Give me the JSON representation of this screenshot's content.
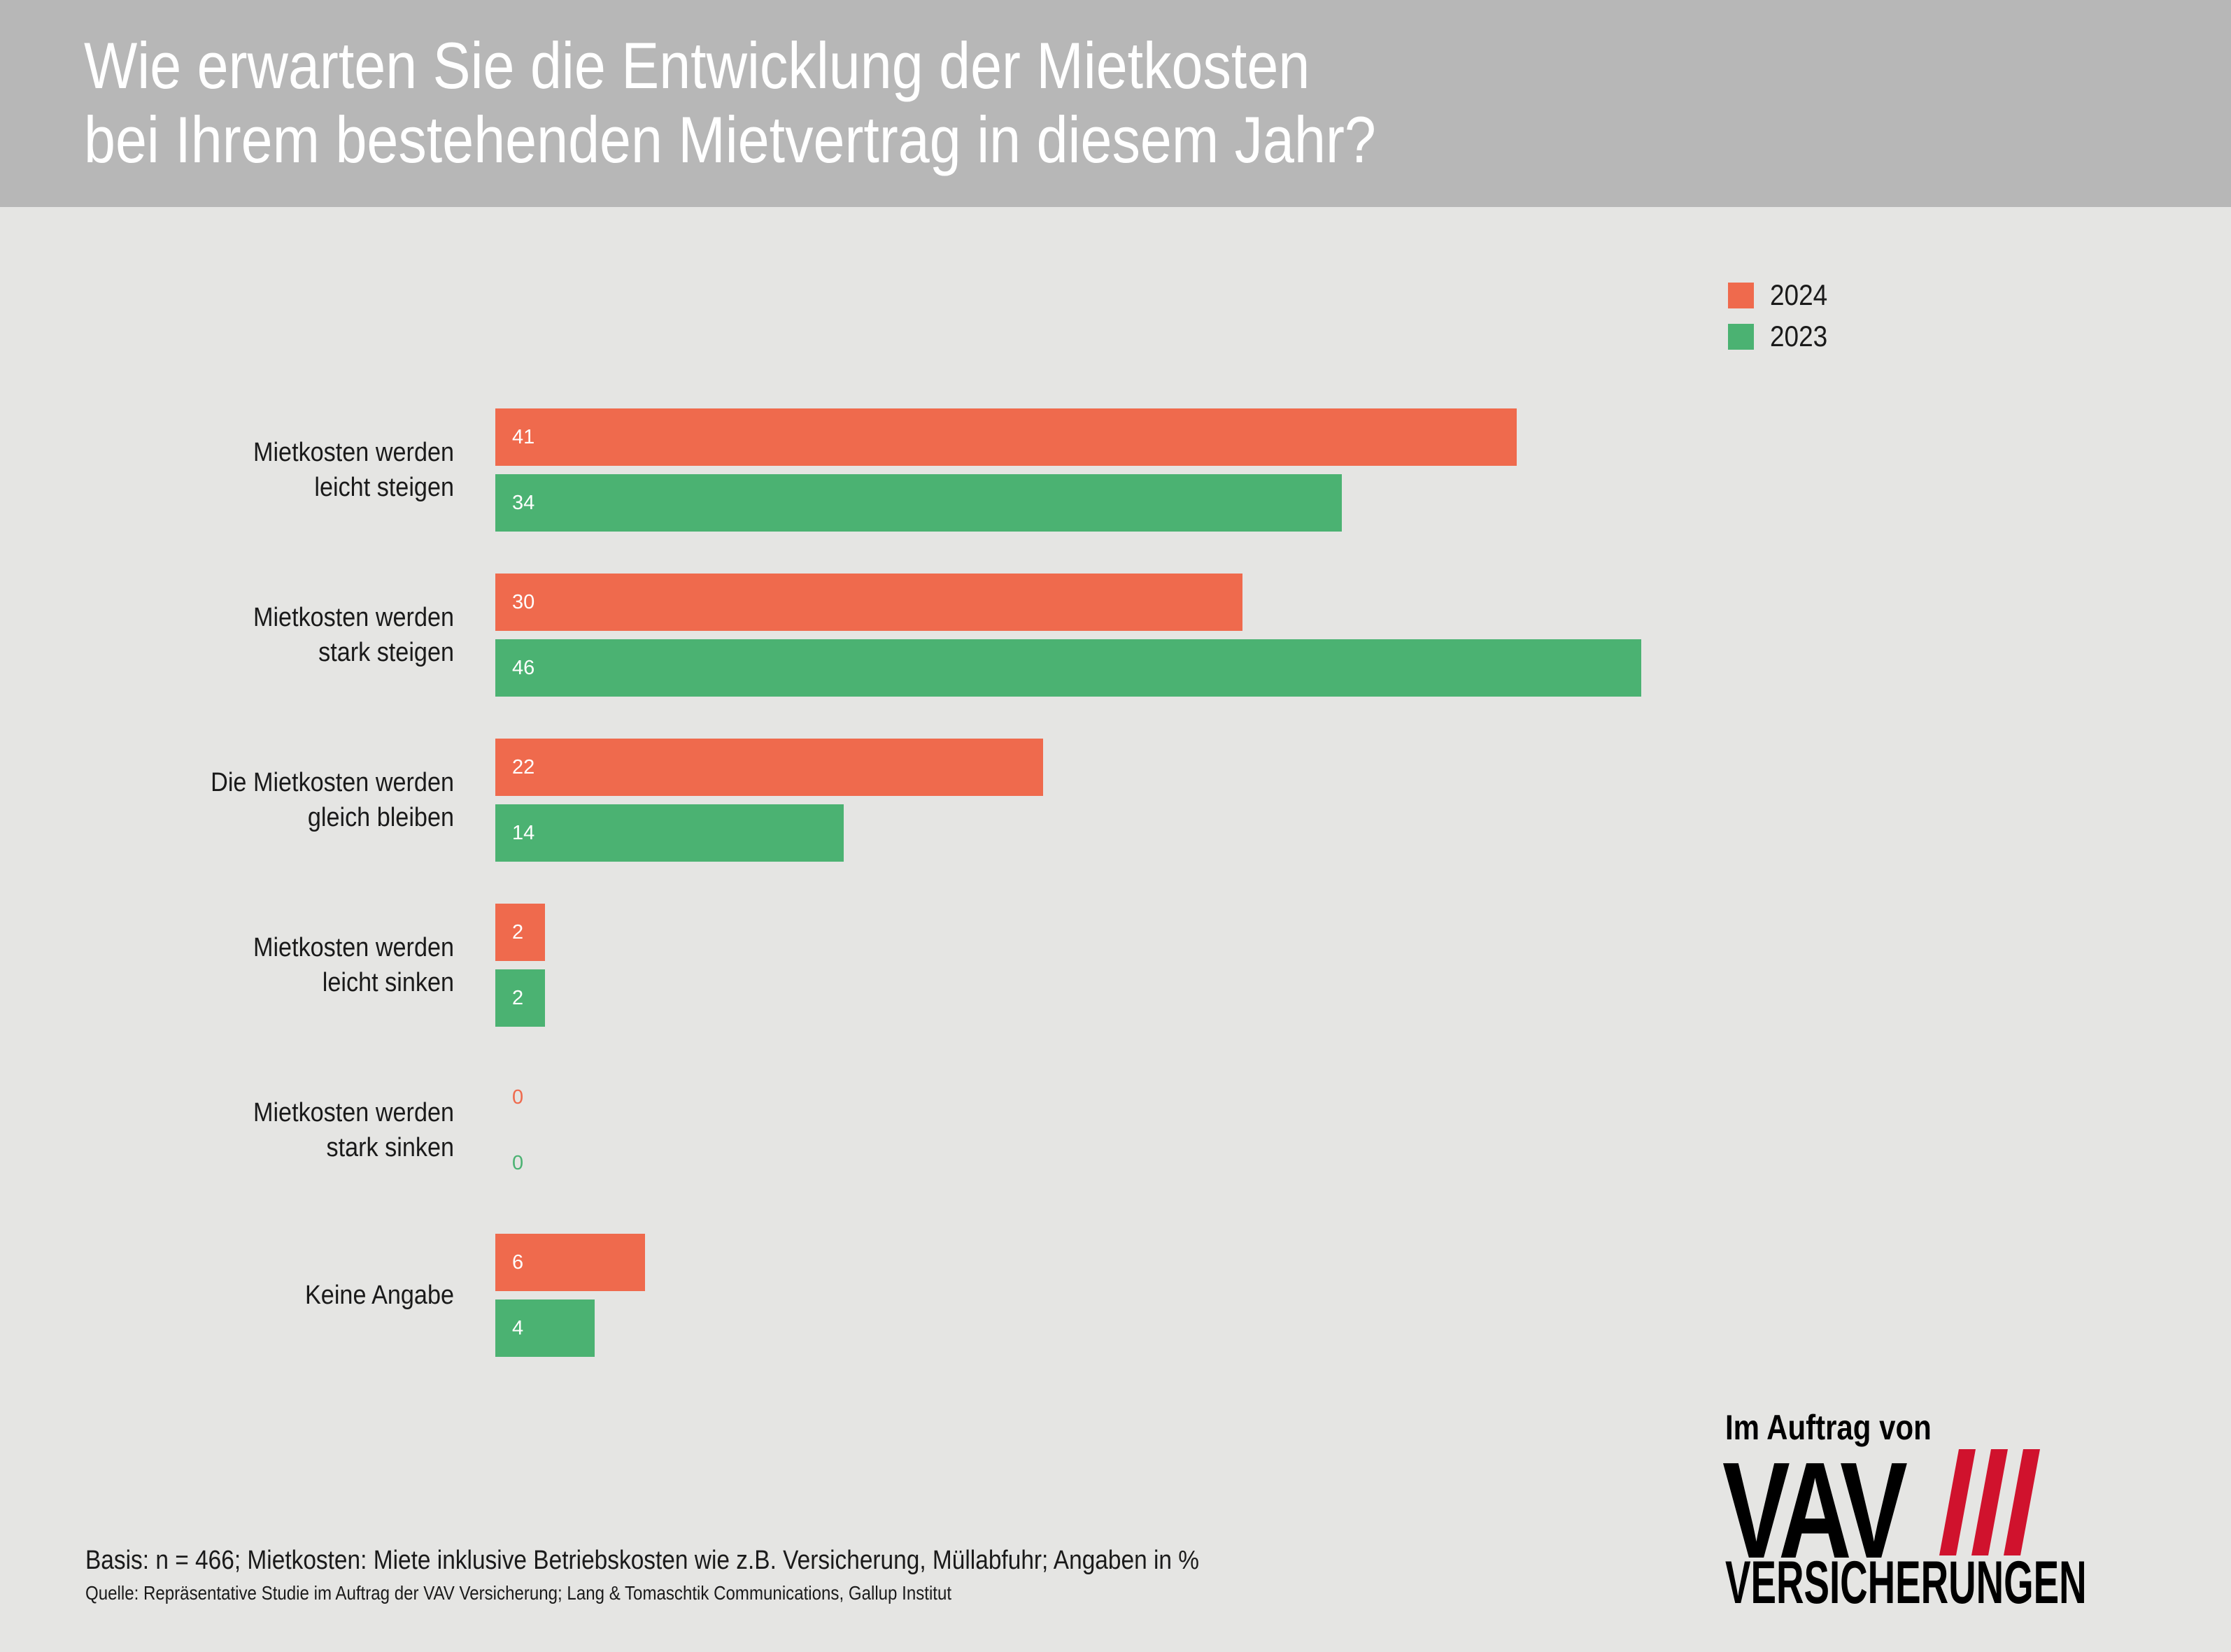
{
  "header": {
    "title_line1": "Wie erwarten Sie die Entwicklung der Mietkosten",
    "title_line2": "bei Ihrem bestehenden Mietvertrag in diesem Jahr?"
  },
  "colors": {
    "series_2024": "#ef6a4d",
    "series_2023": "#4bb272"
  },
  "chart_data": {
    "type": "bar",
    "orientation": "horizontal",
    "categories": [
      [
        "Mietkosten werden",
        "leicht steigen"
      ],
      [
        "Mietkosten werden",
        "stark steigen"
      ],
      [
        "Die Mietkosten werden",
        "gleich bleiben"
      ],
      [
        "Mietkosten werden",
        "leicht sinken"
      ],
      [
        "Mietkosten werden",
        "stark sinken"
      ],
      [
        "Keine Angabe"
      ]
    ],
    "series": [
      {
        "name": "2024",
        "values": [
          41,
          30,
          22,
          2,
          0,
          6
        ]
      },
      {
        "name": "2023",
        "values": [
          34,
          46,
          14,
          2,
          0,
          4
        ]
      }
    ],
    "unit": "%",
    "legend_position": "top-right",
    "grid": false
  },
  "footer": {
    "basis": "Basis: n = 466; Mietkosten: Miete inklusive Betriebskosten wie z.B. Versicherung, Müllabfuhr; Angaben in %",
    "source": "Quelle: Repräsentative Studie im Auftrag der VAV Versicherung; Lang & Tomaschtik Communications, Gallup Institut"
  },
  "logo": {
    "top_text": "Im Auftrag von",
    "brand": "VAV",
    "bottom_text": "VERSICHERUNGEN",
    "accent_color": "#d0122d"
  }
}
